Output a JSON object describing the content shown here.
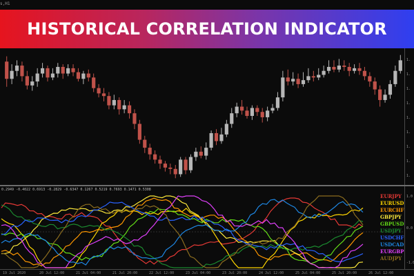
{
  "banner": {
    "title": "HISTORICAL CORRELATION INDICATOR"
  },
  "chart": {
    "symbol_label": "s,H1",
    "colors": {
      "background": "#0b0b0b",
      "bull": "#b7b7b7",
      "bear": "#c0524a",
      "grid": "#3a3a3a"
    },
    "price_ticks": [
      "1.",
      "1.",
      "1.",
      "1.",
      "1.",
      "1.",
      "1.",
      "1.",
      "1."
    ],
    "candles": [
      {
        "o": 91,
        "c": 78,
        "h": 95,
        "l": 72
      },
      {
        "o": 78,
        "c": 84,
        "h": 89,
        "l": 74
      },
      {
        "o": 84,
        "c": 88,
        "h": 92,
        "l": 80
      },
      {
        "o": 88,
        "c": 80,
        "h": 91,
        "l": 76
      },
      {
        "o": 80,
        "c": 73,
        "h": 84,
        "l": 70
      },
      {
        "o": 73,
        "c": 76,
        "h": 80,
        "l": 69
      },
      {
        "o": 76,
        "c": 82,
        "h": 86,
        "l": 72
      },
      {
        "o": 82,
        "c": 86,
        "h": 90,
        "l": 79
      },
      {
        "o": 86,
        "c": 79,
        "h": 88,
        "l": 76
      },
      {
        "o": 79,
        "c": 82,
        "h": 86,
        "l": 77
      },
      {
        "o": 82,
        "c": 87,
        "h": 90,
        "l": 79
      },
      {
        "o": 87,
        "c": 82,
        "h": 89,
        "l": 78
      },
      {
        "o": 82,
        "c": 86,
        "h": 89,
        "l": 80
      },
      {
        "o": 86,
        "c": 83,
        "h": 89,
        "l": 80
      },
      {
        "o": 83,
        "c": 78,
        "h": 86,
        "l": 76
      },
      {
        "o": 78,
        "c": 82,
        "h": 84,
        "l": 74
      },
      {
        "o": 82,
        "c": 79,
        "h": 85,
        "l": 76
      },
      {
        "o": 79,
        "c": 71,
        "h": 82,
        "l": 68
      },
      {
        "o": 71,
        "c": 67,
        "h": 74,
        "l": 64
      },
      {
        "o": 67,
        "c": 65,
        "h": 71,
        "l": 61
      },
      {
        "o": 65,
        "c": 58,
        "h": 68,
        "l": 55
      },
      {
        "o": 58,
        "c": 62,
        "h": 66,
        "l": 55
      },
      {
        "o": 62,
        "c": 55,
        "h": 64,
        "l": 51
      },
      {
        "o": 55,
        "c": 58,
        "h": 62,
        "l": 52
      },
      {
        "o": 58,
        "c": 52,
        "h": 61,
        "l": 48
      },
      {
        "o": 52,
        "c": 44,
        "h": 55,
        "l": 40
      },
      {
        "o": 44,
        "c": 32,
        "h": 47,
        "l": 29
      },
      {
        "o": 32,
        "c": 26,
        "h": 35,
        "l": 22
      },
      {
        "o": 26,
        "c": 21,
        "h": 29,
        "l": 17
      },
      {
        "o": 21,
        "c": 17,
        "h": 24,
        "l": 14
      },
      {
        "o": 17,
        "c": 14,
        "h": 20,
        "l": 10
      },
      {
        "o": 14,
        "c": 11,
        "h": 16,
        "l": 8
      },
      {
        "o": 11,
        "c": 10,
        "h": 14,
        "l": 6
      },
      {
        "o": 10,
        "c": 6,
        "h": 13,
        "l": 3
      },
      {
        "o": 6,
        "c": 17,
        "h": 19,
        "l": 4
      },
      {
        "o": 17,
        "c": 9,
        "h": 19,
        "l": 6
      },
      {
        "o": 9,
        "c": 19,
        "h": 21,
        "l": 7
      },
      {
        "o": 19,
        "c": 23,
        "h": 26,
        "l": 16
      },
      {
        "o": 23,
        "c": 20,
        "h": 27,
        "l": 18
      },
      {
        "o": 20,
        "c": 26,
        "h": 30,
        "l": 17
      },
      {
        "o": 26,
        "c": 37,
        "h": 39,
        "l": 24
      },
      {
        "o": 37,
        "c": 31,
        "h": 40,
        "l": 28
      },
      {
        "o": 31,
        "c": 36,
        "h": 41,
        "l": 29
      },
      {
        "o": 36,
        "c": 44,
        "h": 47,
        "l": 34
      },
      {
        "o": 44,
        "c": 52,
        "h": 56,
        "l": 41
      },
      {
        "o": 52,
        "c": 57,
        "h": 60,
        "l": 49
      },
      {
        "o": 57,
        "c": 54,
        "h": 62,
        "l": 51
      },
      {
        "o": 54,
        "c": 50,
        "h": 57,
        "l": 48
      },
      {
        "o": 50,
        "c": 56,
        "h": 58,
        "l": 47
      },
      {
        "o": 56,
        "c": 53,
        "h": 58,
        "l": 50
      },
      {
        "o": 53,
        "c": 49,
        "h": 56,
        "l": 45
      },
      {
        "o": 49,
        "c": 54,
        "h": 57,
        "l": 46
      },
      {
        "o": 54,
        "c": 56,
        "h": 59,
        "l": 52
      },
      {
        "o": 56,
        "c": 64,
        "h": 68,
        "l": 54
      },
      {
        "o": 64,
        "c": 79,
        "h": 84,
        "l": 61
      },
      {
        "o": 79,
        "c": 76,
        "h": 85,
        "l": 73
      },
      {
        "o": 76,
        "c": 78,
        "h": 83,
        "l": 73
      },
      {
        "o": 78,
        "c": 74,
        "h": 82,
        "l": 71
      },
      {
        "o": 74,
        "c": 77,
        "h": 83,
        "l": 72
      },
      {
        "o": 77,
        "c": 80,
        "h": 86,
        "l": 75
      },
      {
        "o": 80,
        "c": 79,
        "h": 84,
        "l": 76
      },
      {
        "o": 79,
        "c": 81,
        "h": 86,
        "l": 77
      },
      {
        "o": 81,
        "c": 84,
        "h": 88,
        "l": 79
      },
      {
        "o": 84,
        "c": 87,
        "h": 92,
        "l": 82
      },
      {
        "o": 87,
        "c": 85,
        "h": 92,
        "l": 83
      },
      {
        "o": 85,
        "c": 88,
        "h": 93,
        "l": 83
      },
      {
        "o": 88,
        "c": 87,
        "h": 92,
        "l": 84
      },
      {
        "o": 87,
        "c": 84,
        "h": 90,
        "l": 80
      },
      {
        "o": 84,
        "c": 86,
        "h": 89,
        "l": 82
      },
      {
        "o": 86,
        "c": 84,
        "h": 90,
        "l": 81
      },
      {
        "o": 84,
        "c": 80,
        "h": 87,
        "l": 77
      },
      {
        "o": 80,
        "c": 76,
        "h": 83,
        "l": 72
      },
      {
        "o": 76,
        "c": 70,
        "h": 79,
        "l": 66
      },
      {
        "o": 70,
        "c": 62,
        "h": 73,
        "l": 57
      },
      {
        "o": 62,
        "c": 66,
        "h": 70,
        "l": 60
      },
      {
        "o": 66,
        "c": 74,
        "h": 77,
        "l": 63
      },
      {
        "o": 74,
        "c": 84,
        "h": 88,
        "l": 72
      },
      {
        "o": 84,
        "c": 92,
        "h": 96,
        "l": 82
      }
    ]
  },
  "indicator": {
    "values_text": "0.2949 -0.4022 0.6913 -0.2829 -0.6347 0.1267 0.5219 0.7693 0.1471 0.5308",
    "axis_ticks": [
      "1.0",
      "0.0",
      "-1.0"
    ],
    "series": [
      {
        "name": "EURJPY",
        "color": "#e53935"
      },
      {
        "name": "EURUSD",
        "color": "#ffd600"
      },
      {
        "name": "EURCHF",
        "color": "#ff9800"
      },
      {
        "name": "GBPJPY",
        "color": "#ffeb3b"
      },
      {
        "name": "GBPUSD",
        "color": "#64dd17"
      },
      {
        "name": "USDJPY",
        "color": "#1b8a2f"
      },
      {
        "name": "USDCHF",
        "color": "#2962ff"
      },
      {
        "name": "USDCAD",
        "color": "#1e88e5"
      },
      {
        "name": "EURGBP",
        "color": "#e040fb"
      },
      {
        "name": "AUDJPY",
        "color": "#8d6e1f"
      }
    ]
  },
  "time_axis": {
    "labels": [
      "19 Jul 2020",
      "20 Jul 12:00",
      "21 Jul 04:00",
      "21 Jul 20:00",
      "22 Jul 12:00",
      "23 Jul 04:00",
      "23 Jul 20:00",
      "24 Jul 12:00",
      "25 Jul 04:00",
      "25 Jul 20:00",
      "26 Jul 12:00"
    ]
  }
}
